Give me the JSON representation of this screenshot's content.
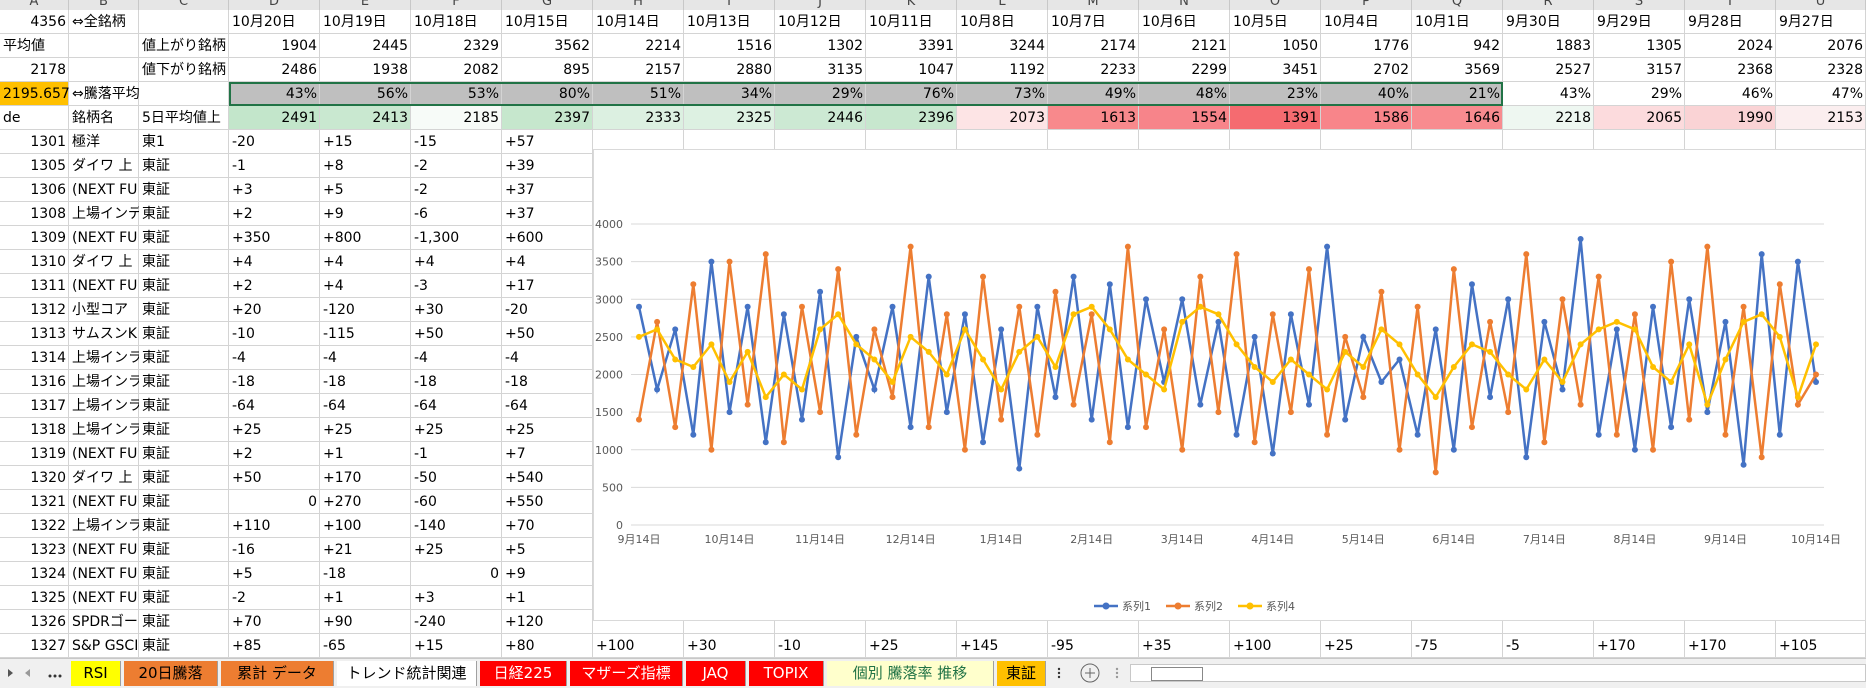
{
  "columns": [
    "A",
    "B",
    "C",
    "D",
    "E",
    "F",
    "G",
    "H",
    "I",
    "J",
    "K",
    "L",
    "M",
    "N",
    "O",
    "P",
    "Q",
    "R",
    "S",
    "T",
    "U"
  ],
  "rows": [
    [
      "4356",
      "⇔全銘柄",
      null,
      "10月20日",
      "10月19日",
      "10月18日",
      "10月15日",
      "10月14日",
      "10月13日",
      "10月12日",
      "10月11日",
      "10月8日",
      "10月7日",
      "10月6日",
      "10月5日",
      "10月4日",
      "10月1日",
      "9月30日",
      "9月29日",
      "9月28日",
      "9月27日"
    ],
    [
      "平均値",
      null,
      "値上がり銘柄",
      "1904",
      "2445",
      "2329",
      "3562",
      "2214",
      "1516",
      "1302",
      "3391",
      "3244",
      "2174",
      "2121",
      "1050",
      "1776",
      "942",
      "1883",
      "1305",
      "2024",
      "2076"
    ],
    [
      "2178",
      null,
      "値下がり銘柄",
      "2486",
      "1938",
      "2082",
      "895",
      "2157",
      "2880",
      "3135",
      "1047",
      "1192",
      "2233",
      "2299",
      "3451",
      "2702",
      "3569",
      "2527",
      "3157",
      "2368",
      "2328"
    ],
    [
      "2195.657",
      "⇔騰落平均",
      null,
      "43%",
      "56%",
      "53%",
      "80%",
      "51%",
      "34%",
      "29%",
      "76%",
      "73%",
      "49%",
      "48%",
      "23%",
      "40%",
      "21%",
      "43%",
      "29%",
      "46%",
      "47%"
    ],
    [
      "de",
      "銘柄名",
      "5日平均値上",
      "2491",
      "2413",
      "2185",
      "2397",
      "2333",
      "2325",
      "2446",
      "2396",
      "2073",
      "1613",
      "1554",
      "1391",
      "1586",
      "1646",
      "2218",
      "2065",
      "1990",
      "2153"
    ],
    [
      "1301",
      "極洋",
      "東1",
      "-20",
      "+15",
      "-15",
      "+57"
    ],
    [
      "1305",
      "ダイワ 上",
      "東証",
      "-1",
      "+8",
      "-2",
      "+39"
    ],
    [
      "1306",
      "(NEXT FU",
      "東証",
      "+3",
      "+5",
      "-2",
      "+37"
    ],
    [
      "1308",
      "上場インデ",
      "東証",
      "+2",
      "+9",
      "-6",
      "+37"
    ],
    [
      "1309",
      "(NEXT FU",
      "東証",
      "+350",
      "+800",
      "-1,300",
      "+600"
    ],
    [
      "1310",
      "ダイワ 上",
      "東証",
      "+4",
      "+4",
      "+4",
      "+4"
    ],
    [
      "1311",
      "(NEXT FU",
      "東証",
      "+2",
      "+4",
      "-3",
      "+17"
    ],
    [
      "1312",
      "小型コア",
      "東証",
      "+20",
      "-120",
      "+30",
      "-20"
    ],
    [
      "1313",
      "サムスンK",
      "東証",
      "-10",
      "-115",
      "+50",
      "+50"
    ],
    [
      "1314",
      "上場インラ",
      "東証",
      "-4",
      "-4",
      "-4",
      "-4"
    ],
    [
      "1316",
      "上場インラ",
      "東証",
      "-18",
      "-18",
      "-18",
      "-18"
    ],
    [
      "1317",
      "上場インラ",
      "東証",
      "-64",
      "-64",
      "-64",
      "-64"
    ],
    [
      "1318",
      "上場インラ",
      "東証",
      "+25",
      "+25",
      "+25",
      "+25"
    ],
    [
      "1319",
      "(NEXT FU",
      "東証",
      "+2",
      "+1",
      "-1",
      "+7"
    ],
    [
      "1320",
      "ダイワ 上",
      "東証",
      "+50",
      "+170",
      "-50",
      "+540"
    ],
    [
      "1321",
      "(NEXT FU",
      "東証",
      "0",
      "+270",
      "-60",
      "+550"
    ],
    [
      "1322",
      "上場インラ",
      "東証",
      "+110",
      "+100",
      "-140",
      "+70"
    ],
    [
      "1323",
      "(NEXT FU",
      "東証",
      "-16",
      "+21",
      "+25",
      "+5"
    ],
    [
      "1324",
      "(NEXT FU",
      "東証",
      "+5",
      "-18",
      "0",
      "+9"
    ],
    [
      "1325",
      "(NEXT FU",
      "東証",
      "-2",
      "+1",
      "+3",
      "+1"
    ],
    [
      "1326",
      "SPDRゴー",
      "東証",
      "+70",
      "+90",
      "-240",
      "+120"
    ],
    [
      "1327",
      "S&P GSCI",
      "東証",
      "+85",
      "-65",
      "+15",
      "+80",
      "+100",
      "+30",
      "-10",
      "+25",
      "+145",
      "-95",
      "+35",
      "+100",
      "+25",
      "-75",
      "-5",
      "+170",
      "+170",
      "+105"
    ]
  ],
  "chart_data": {
    "type": "line",
    "categories": [
      "9月14日",
      null,
      null,
      null,
      null,
      "10月14日",
      null,
      null,
      null,
      null,
      "11月14日",
      null,
      null,
      null,
      null,
      "12月14日",
      null,
      null,
      null,
      null,
      "1月14日",
      null,
      null,
      null,
      null,
      "2月14日",
      null,
      null,
      null,
      null,
      "3月14日",
      null,
      null,
      null,
      null,
      "4月14日",
      null,
      null,
      null,
      null,
      "5月14日",
      null,
      null,
      null,
      null,
      "6月14日",
      null,
      null,
      null,
      null,
      "7月14日",
      null,
      null,
      null,
      null,
      "8月14日",
      null,
      null,
      null,
      null,
      "9月14日",
      null,
      null,
      null,
      null,
      "10月14日"
    ],
    "series": [
      {
        "name": "系列1",
        "color": "#4472c4",
        "values": [
          2900,
          1800,
          2600,
          1200,
          3500,
          1500,
          2900,
          1100,
          2800,
          1400,
          3100,
          900,
          2500,
          1800,
          2900,
          1300,
          3300,
          1500,
          2800,
          1100,
          2600,
          750,
          2900,
          1700,
          3300,
          1400,
          3200,
          1300,
          3000,
          1900,
          3000,
          1600,
          2700,
          1200,
          2500,
          950,
          2800,
          1600,
          3700,
          1400,
          2500,
          1900,
          2200,
          1200,
          2600,
          1000,
          3200,
          1700,
          3000,
          900,
          2700,
          1800,
          3800,
          1200,
          2600,
          1000,
          2900,
          1300,
          3000,
          1500,
          2700,
          800,
          3600,
          1200,
          3500,
          1900
        ]
      },
      {
        "name": "系列2",
        "color": "#ed7d31",
        "values": [
          1400,
          2700,
          1300,
          3200,
          1000,
          3500,
          1600,
          3600,
          1100,
          2900,
          1500,
          3400,
          1200,
          2600,
          1700,
          3700,
          1300,
          2800,
          1000,
          3300,
          1400,
          2900,
          1200,
          3100,
          1600,
          2800,
          1100,
          3700,
          1300,
          2600,
          1000,
          3300,
          1500,
          3600,
          1100,
          2800,
          1500,
          3400,
          1200,
          2500,
          1700,
          3100,
          1000,
          2900,
          700,
          3400,
          1300,
          2700,
          1500,
          3600,
          1100,
          3000,
          1600,
          3300,
          1200,
          2800,
          1000,
          3500,
          1400,
          3700,
          1200,
          2900,
          900,
          3200,
          1600,
          2000
        ]
      },
      {
        "name": "系列4",
        "color": "#ffc000",
        "values": [
          2500,
          2600,
          2200,
          2100,
          2400,
          1900,
          2300,
          1700,
          2000,
          1800,
          2600,
          2800,
          2400,
          2200,
          1900,
          2500,
          2300,
          2000,
          2600,
          2200,
          1800,
          2300,
          2500,
          2100,
          2800,
          2900,
          2600,
          2200,
          2000,
          1800,
          2700,
          2900,
          2800,
          2400,
          2100,
          1900,
          2200,
          2000,
          1800,
          2300,
          2100,
          2600,
          2400,
          2000,
          1700,
          2100,
          2400,
          2300,
          2000,
          1800,
          2200,
          1900,
          2400,
          2600,
          2700,
          2600,
          2100,
          1900,
          2400,
          1600,
          2200,
          2700,
          2800,
          2500,
          1700,
          2400
        ]
      }
    ],
    "ylim": [
      0,
      4000
    ],
    "yticks": [
      0,
      500,
      1000,
      1500,
      2000,
      2500,
      3000,
      3500,
      4000
    ],
    "grid": true,
    "legend": "bottom"
  },
  "tabs": [
    "RSI",
    "20日騰落",
    "累計 データ",
    "トレンド統計関連",
    "日経225",
    "マザーズ指標",
    "JAQ",
    "TOPIX",
    "個別 騰落率 推移",
    "東証"
  ]
}
